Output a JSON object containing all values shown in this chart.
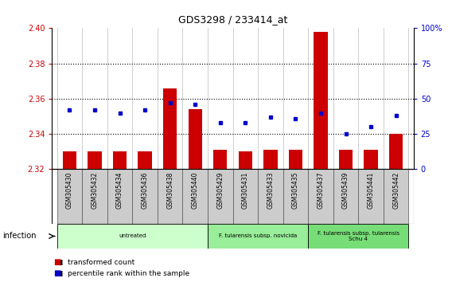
{
  "title": "GDS3298 / 233414_at",
  "samples": [
    "GSM305430",
    "GSM305432",
    "GSM305434",
    "GSM305436",
    "GSM305438",
    "GSM305440",
    "GSM305429",
    "GSM305431",
    "GSM305433",
    "GSM305435",
    "GSM305437",
    "GSM305439",
    "GSM305441",
    "GSM305442"
  ],
  "transformed_count": [
    2.33,
    2.33,
    2.33,
    2.33,
    2.366,
    2.354,
    2.331,
    2.33,
    2.331,
    2.331,
    2.398,
    2.331,
    2.331,
    2.34
  ],
  "percentile_rank": [
    42,
    42,
    40,
    42,
    47,
    46,
    33,
    33,
    37,
    36,
    40,
    25,
    30,
    38
  ],
  "ylim_left": [
    2.32,
    2.4
  ],
  "ylim_right": [
    0,
    100
  ],
  "yticks_left": [
    2.32,
    2.34,
    2.36,
    2.38,
    2.4
  ],
  "yticks_right": [
    0,
    25,
    50,
    75,
    100
  ],
  "groups": [
    {
      "label": "untreated",
      "start": 0,
      "end": 5,
      "color": "#ccffcc"
    },
    {
      "label": "F. tularensis subsp. novicida",
      "start": 6,
      "end": 9,
      "color": "#99ee99"
    },
    {
      "label": "F. tularensis subsp. tularensis\nSchu 4",
      "start": 10,
      "end": 13,
      "color": "#77dd77"
    }
  ],
  "bar_color": "#cc0000",
  "dot_color": "#0000cc",
  "bar_width": 0.55,
  "plot_bg": "#ffffff",
  "tick_bg": "#cccccc",
  "infection_label": "infection"
}
